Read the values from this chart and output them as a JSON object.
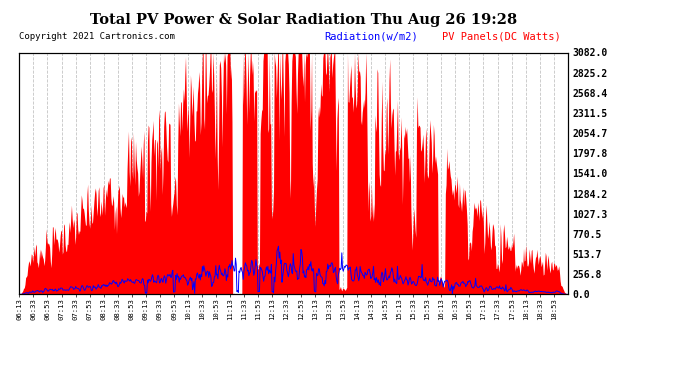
{
  "title": "Total PV Power & Solar Radiation Thu Aug 26 19:28",
  "copyright": "Copyright 2021 Cartronics.com",
  "legend_radiation": "Radiation(w/m2)",
  "legend_pv": "PV Panels(DC Watts)",
  "ymax": 3082.0,
  "yticks": [
    0.0,
    256.8,
    513.7,
    770.5,
    1027.3,
    1284.2,
    1541.0,
    1797.8,
    2054.7,
    2311.5,
    2568.4,
    2825.2,
    3082.0
  ],
  "bg_color": "#ffffff",
  "plot_bg_color": "#ffffff",
  "radiation_color": "#ff0000",
  "pv_color": "#0000ff",
  "grid_color": "#aaaaaa",
  "title_color": "#000000",
  "copyright_color": "#000000",
  "radiation_legend_color": "#0000ff",
  "pv_legend_color": "#ff0000",
  "num_points": 780
}
